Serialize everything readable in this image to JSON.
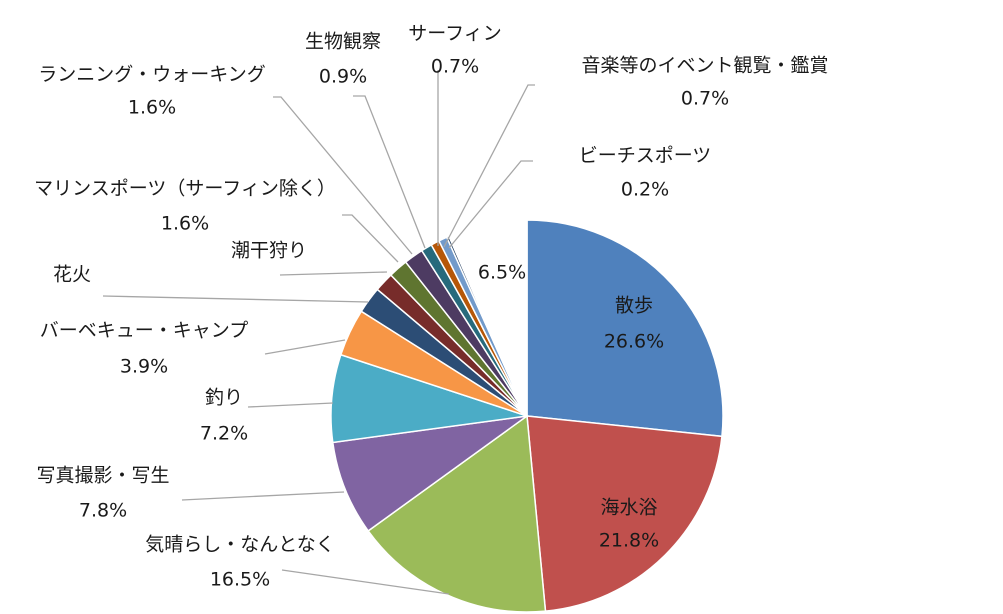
{
  "chart_data": {
    "type": "pie",
    "title": "",
    "start_angle_deg": 0,
    "direction": "clockwise",
    "legend": "none",
    "data_labels": "category and percent",
    "series": [
      {
        "categories": [
          "散歩",
          "海水浴",
          "気晴らし・なんとなく",
          "写真撮影・写生",
          "釣り",
          "バーベキュー・キャンプ",
          "花火",
          "潮干狩り",
          "マリンスポーツ（サーフィン除く）",
          "ランニング・ウォーキング",
          "生物観察",
          "サーフィン",
          "音楽等のイベント観覧・鑑賞",
          "ビーチスポーツ",
          ""
        ],
        "values": [
          26.6,
          21.8,
          16.5,
          7.8,
          7.2,
          3.9,
          2.2,
          1.6,
          1.6,
          1.6,
          0.9,
          0.7,
          0.7,
          0.2,
          6.5
        ],
        "percent_labels": [
          "26.6%",
          "21.8%",
          "16.5%",
          "7.8%",
          "7.2%",
          "3.9%",
          "",
          "",
          "1.6%",
          "1.6%",
          "0.9%",
          "0.7%",
          "0.7%",
          "0.2%",
          "6.5%"
        ],
        "colors": [
          "#4f81bd",
          "#c0504d",
          "#9bbb59",
          "#8064a2",
          "#4bacc6",
          "#f79646",
          "#2c4d75",
          "#772c2a",
          "#5f7530",
          "#4d3b62",
          "#276a7c",
          "#b65708",
          "#729aca",
          "#254061",
          "#ffffff"
        ]
      }
    ]
  }
}
